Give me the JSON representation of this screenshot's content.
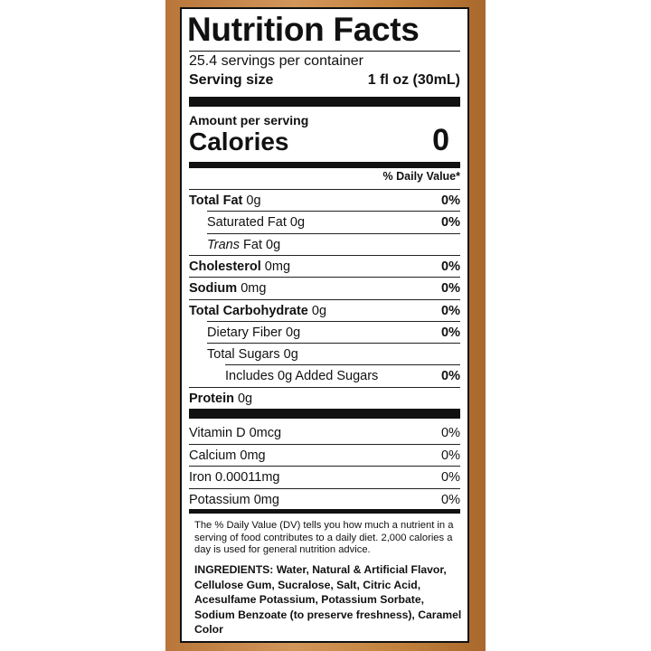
{
  "title": "Nutrition Facts",
  "servings": "25.4 servings per container",
  "serving_size": {
    "label": "Serving size",
    "value": "1 fl oz (30mL)"
  },
  "amount_per_serving": "Amount per serving",
  "calories": {
    "label": "Calories",
    "value": 0
  },
  "dv_header": "% Daily Value*",
  "nutrients": [
    {
      "name": "Total Fat",
      "amount": "0g",
      "dv": "0%"
    },
    {
      "name": "Saturated Fat",
      "amount": "0g",
      "dv": "0%"
    },
    {
      "name_italic": "Trans",
      "name": "Fat",
      "amount": "0g"
    },
    {
      "name": "Cholesterol",
      "amount": "0mg",
      "dv": "0%"
    },
    {
      "name": "Sodium",
      "amount": "0mg",
      "dv": "0%"
    },
    {
      "name": "Total Carbohydrate",
      "amount": "0g",
      "dv": "0%"
    },
    {
      "name": "Dietary Fiber",
      "amount": "0g",
      "dv": "0%"
    },
    {
      "name": "Total Sugars",
      "amount": "0g"
    },
    {
      "name": "Includes 0g Added Sugars",
      "dv": "0%"
    },
    {
      "name": "Protein",
      "amount": "0g"
    }
  ],
  "vitamins": [
    {
      "name": "Vitamin D 0mcg",
      "dv": "0%"
    },
    {
      "name": "Calcium 0mg",
      "dv": "0%"
    },
    {
      "name": "Iron 0.00011mg",
      "dv": "0%"
    },
    {
      "name": "Potassium 0mg",
      "dv": "0%"
    }
  ],
  "footnote": "The % Daily Value (DV) tells you how much a nutrient in a serving of food contributes to a daily diet. 2,000 calories a day is used for general nutrition advice.",
  "ingredients": "INGREDIENTS: Water, Natural & Artificial Flavor, Cellulose Gum, Sucralose, Salt, Citric Acid, Acesulfame Potassium, Potassium Sorbate, Sodium Benzoate (to preserve freshness), Caramel Color"
}
